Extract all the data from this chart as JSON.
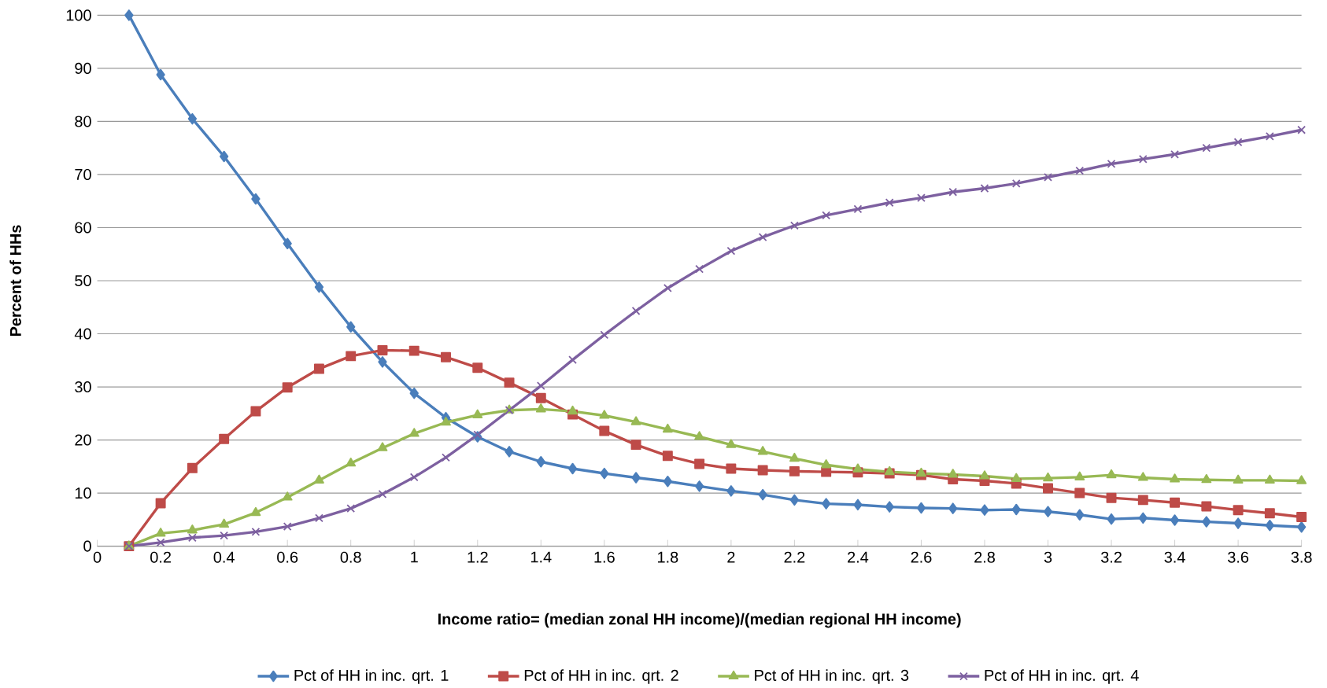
{
  "chart_data": {
    "type": "line",
    "xlabel": "Income ratio= (median zonal HH income)/(median regional HH income)",
    "ylabel": "Percent of HHs",
    "x": [
      0.1,
      0.2,
      0.3,
      0.4,
      0.5,
      0.6,
      0.7,
      0.8,
      0.9,
      1.0,
      1.1,
      1.2,
      1.3,
      1.4,
      1.5,
      1.6,
      1.7,
      1.8,
      1.9,
      2.0,
      2.1,
      2.2,
      2.3,
      2.4,
      2.5,
      2.6,
      2.7,
      2.8,
      2.9,
      3.0,
      3.1,
      3.2,
      3.3,
      3.4,
      3.5,
      3.6,
      3.7,
      3.8
    ],
    "series": [
      {
        "name": "Pct of HH in inc. qrt. 1",
        "color": "#4a7ebb",
        "marker": "diamond",
        "values": [
          100,
          88.8,
          80.5,
          73.4,
          65.4,
          57,
          48.8,
          41.3,
          34.7,
          28.8,
          24.2,
          20.6,
          17.8,
          15.9,
          14.6,
          13.7,
          12.9,
          12.2,
          11.3,
          10.4,
          9.7,
          8.7,
          8.0,
          7.8,
          7.4,
          7.2,
          7.1,
          6.8,
          6.9,
          6.5,
          5.9,
          5.1,
          5.3,
          4.9,
          4.6,
          4.3,
          3.9,
          3.6
        ]
      },
      {
        "name": "Pct of HH in inc. qrt. 2",
        "color": "#be4b48",
        "marker": "square",
        "values": [
          0,
          8.1,
          14.7,
          20.2,
          25.4,
          29.9,
          33.4,
          35.8,
          36.9,
          36.8,
          35.6,
          33.6,
          30.8,
          27.9,
          24.8,
          21.7,
          19.1,
          17.0,
          15.5,
          14.6,
          14.3,
          14.1,
          14.0,
          13.9,
          13.7,
          13.4,
          12.6,
          12.3,
          11.8,
          10.9,
          10.0,
          9.1,
          8.7,
          8.2,
          7.5,
          6.8,
          6.2,
          5.5
        ]
      },
      {
        "name": "Pct of HH in inc. qrt. 3",
        "color": "#98b954",
        "marker": "triangle",
        "values": [
          0,
          2.4,
          3.0,
          4.1,
          6.3,
          9.2,
          12.4,
          15.6,
          18.5,
          21.2,
          23.3,
          24.7,
          25.6,
          25.8,
          25.4,
          24.6,
          23.4,
          22.0,
          20.6,
          19.1,
          17.8,
          16.5,
          15.3,
          14.5,
          14.0,
          13.7,
          13.5,
          13.2,
          12.7,
          12.8,
          13.0,
          13.4,
          12.9,
          12.6,
          12.5,
          12.4,
          12.4,
          12.3
        ]
      },
      {
        "name": "Pct of HH in inc. qrt. 4",
        "color": "#7d60a0",
        "marker": "cross",
        "values": [
          0,
          0.7,
          1.6,
          2.0,
          2.7,
          3.7,
          5.3,
          7.1,
          9.8,
          13.0,
          16.7,
          21.0,
          25.6,
          30.2,
          35.1,
          39.8,
          44.3,
          48.6,
          52.2,
          55.6,
          58.2,
          60.4,
          62.3,
          63.5,
          64.7,
          65.6,
          66.7,
          67.4,
          68.3,
          69.5,
          70.7,
          72.0,
          72.9,
          73.8,
          75.0,
          76.1,
          77.2,
          78.4
        ]
      }
    ],
    "xlim": [
      0,
      3.8
    ],
    "xticks": [
      0,
      0.2,
      0.4,
      0.6,
      0.8,
      1,
      1.2,
      1.4,
      1.6,
      1.8,
      2,
      2.2,
      2.4,
      2.6,
      2.8,
      3,
      3.2,
      3.4,
      3.6,
      3.8
    ],
    "ylim": [
      0,
      100
    ],
    "yticks": [
      0,
      10,
      20,
      30,
      40,
      50,
      60,
      70,
      80,
      90,
      100
    ],
    "grid": "y",
    "legend": "bottom"
  }
}
